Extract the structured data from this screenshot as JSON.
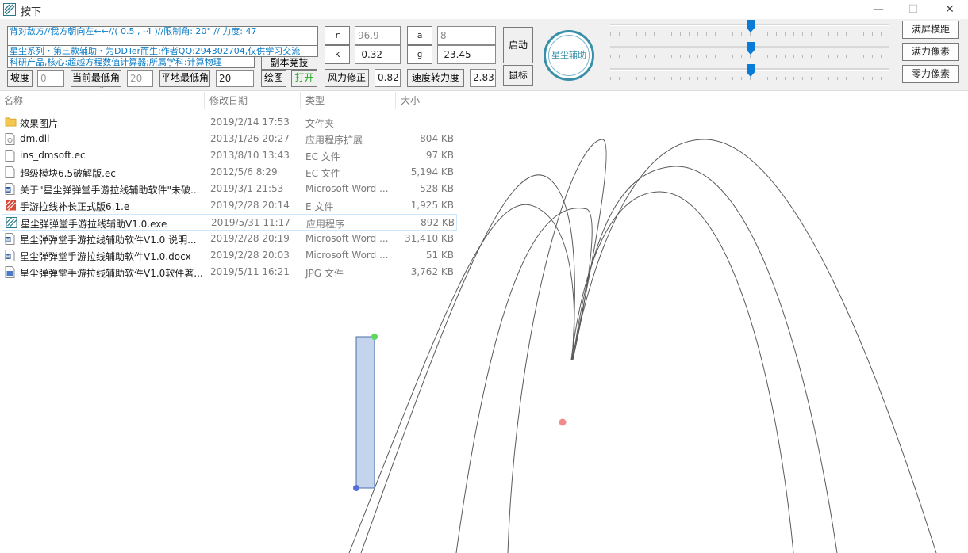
{
  "window": {
    "title": "按下",
    "minimize": "—",
    "maximize": "☐",
    "close": "✕"
  },
  "info": {
    "line1": "背对敌方//我方朝向左←←//(  0.5  ,   -4  )//限制角: 20° // 力度: 47",
    "line2": "星尘系列・第三款辅助・为DDTer而生;作者QQ:294302704,仅供学习交流",
    "line3": "科研产品,核心:超越方程数值计算器;所属学科:计算物理"
  },
  "controls": {
    "copy_compete": "副本竞技",
    "slope_label": "坡度",
    "slope_value": "0",
    "cur_min_angle_label": "当前最低角",
    "cur_min_angle_value": "20",
    "flat_min_angle_label": "平地最低角",
    "flat_min_angle_value": "20",
    "draw_label": "绘图",
    "open_label": "打开",
    "wind_fix_label": "风力修正",
    "wind_fix_value": "0.82",
    "speed_force_label": "速度转力度",
    "speed_force_value": "2.83",
    "r_label": "r",
    "r_value": "96.9",
    "k_label": "k",
    "k_value": "-0.32",
    "a_label": "a",
    "a_value": "8",
    "g_label": "g",
    "g_value": "-23.45",
    "start_label": "启动",
    "mouse_label": "鼠标",
    "logo_text": "星尘辅助",
    "full_horizontal": "满屏横距",
    "full_force_px": "满力像素",
    "zero_force_px": "零力像素"
  },
  "sliders": [
    {
      "level": 0.51
    },
    {
      "level": 0.51
    },
    {
      "level": 0.51
    }
  ],
  "explorer": {
    "headers": {
      "name": "名称",
      "date": "修改日期",
      "type": "类型",
      "size": "大小"
    },
    "rows": [
      {
        "icon": "folder-icon",
        "name": "效果图片",
        "date": "2019/2/14 17:53",
        "type": "文件夹",
        "size": ""
      },
      {
        "icon": "dll-file-icon",
        "name": "dm.dll",
        "date": "2013/1/26 20:27",
        "type": "应用程序扩展",
        "size": "804 KB"
      },
      {
        "icon": "ec-file-icon",
        "name": "ins_dmsoft.ec",
        "date": "2013/8/10 13:43",
        "type": "EC 文件",
        "size": "97 KB"
      },
      {
        "icon": "ec-file-icon",
        "name": "超级模块6.5破解版.ec",
        "date": "2012/5/6 8:29",
        "type": "EC 文件",
        "size": "5,194 KB"
      },
      {
        "icon": "word-file-icon",
        "name": "关于\"星尘弹弹堂手游拉线辅助软件\"未破...",
        "date": "2019/3/1 21:53",
        "type": "Microsoft Word ...",
        "size": "528 KB"
      },
      {
        "icon": "e-file-icon",
        "name": "手游拉线补长正式版6.1.e",
        "date": "2019/2/28 20:14",
        "type": "E 文件",
        "size": "1,925 KB"
      },
      {
        "icon": "exe-file-icon",
        "name": "星尘弹弹堂手游拉线辅助V1.0.exe",
        "date": "2019/5/31 11:17",
        "type": "应用程序",
        "size": "892 KB"
      },
      {
        "icon": "word-file-icon",
        "name": "星尘弹弹堂手游拉线辅助软件V1.0 说明...",
        "date": "2019/2/28 20:19",
        "type": "Microsoft Word ...",
        "size": "31,410 KB"
      },
      {
        "icon": "word-file-icon",
        "name": "星尘弹弹堂手游拉线辅助软件V1.0.docx",
        "date": "2019/2/28 20:03",
        "type": "Microsoft Word ...",
        "size": "51 KB"
      },
      {
        "icon": "jpg-file-icon",
        "name": "星尘弹弹堂手游拉线辅助软件V1.0软件著...",
        "date": "2019/5/11 16:21",
        "type": "JPG 文件",
        "size": "3,762 KB"
      }
    ],
    "selected_row": 6
  },
  "colors": {
    "accent": "#0a7cd8",
    "info_text": "#0a7cc8",
    "open_text": "#22aa22",
    "bar_fill": "#c3d4ec",
    "target_dot": "#f08c8c"
  }
}
